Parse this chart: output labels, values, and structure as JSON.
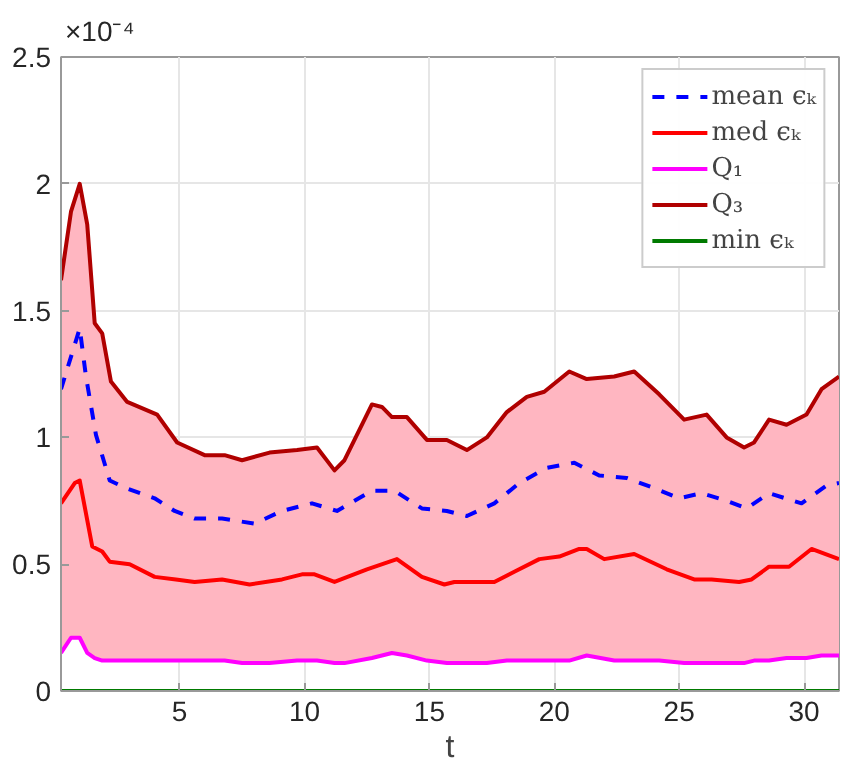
{
  "chart_data": {
    "type": "line",
    "xlabel": "t",
    "annotations": [
      "×10⁻⁴"
    ],
    "xlim": [
      0.25,
      31.4
    ],
    "ylim": [
      0,
      2.5
    ],
    "xticks": [
      5,
      10,
      15,
      20,
      25,
      30
    ],
    "yticks": [
      0,
      0.5,
      1,
      1.5,
      2,
      2.5
    ],
    "grid": true,
    "legend": "top right",
    "series": [
      {
        "name": "mean ϵₖ",
        "color": "#0000ff",
        "line_style": "dashed",
        "x": [
          0.25,
          1.0,
          1.25,
          1.65,
          2.2,
          2.85,
          4.0,
          4.8,
          5.6,
          6.7,
          8.0,
          9.1,
          10.3,
          11.3,
          12.7,
          13.6,
          14.7,
          15.7,
          16.5,
          17.6,
          18.6,
          19.7,
          20.8,
          21.8,
          22.9,
          24.0,
          25.0,
          25.9,
          26.9,
          27.7,
          28.6,
          29.9,
          30.9,
          31.4
        ],
        "values": [
          1.19,
          1.43,
          1.24,
          1.01,
          0.83,
          0.8,
          0.76,
          0.71,
          0.68,
          0.68,
          0.66,
          0.71,
          0.74,
          0.71,
          0.79,
          0.79,
          0.72,
          0.71,
          0.69,
          0.74,
          0.82,
          0.88,
          0.9,
          0.85,
          0.84,
          0.8,
          0.76,
          0.78,
          0.75,
          0.72,
          0.78,
          0.74,
          0.81,
          0.82
        ]
      },
      {
        "name": "med ϵₖ",
        "color": "#ff0000",
        "x": [
          0.25,
          0.8,
          1.0,
          1.5,
          1.9,
          2.2,
          3.0,
          4.0,
          4.85,
          5.6,
          6.7,
          7.8,
          9.1,
          9.9,
          10.4,
          11.2,
          12.5,
          13.7,
          14.7,
          15.6,
          16.0,
          17.6,
          18.4,
          19.4,
          20.2,
          21.0,
          21.3,
          22.0,
          23.2,
          24.5,
          25.6,
          26.3,
          27.4,
          27.9,
          28.6,
          29.4,
          30.3,
          31.4
        ],
        "values": [
          0.74,
          0.82,
          0.83,
          0.57,
          0.55,
          0.51,
          0.5,
          0.45,
          0.44,
          0.43,
          0.44,
          0.42,
          0.44,
          0.46,
          0.46,
          0.43,
          0.48,
          0.52,
          0.45,
          0.42,
          0.43,
          0.43,
          0.47,
          0.52,
          0.53,
          0.56,
          0.56,
          0.52,
          0.54,
          0.48,
          0.44,
          0.44,
          0.43,
          0.44,
          0.49,
          0.49,
          0.56,
          0.52
        ]
      },
      {
        "name": "Q₁",
        "color": "#ff00ff",
        "x": [
          0.25,
          0.65,
          1.0,
          1.3,
          1.6,
          1.9,
          2.25,
          2.9,
          4.1,
          4.9,
          6.0,
          6.8,
          7.5,
          8.6,
          9.7,
          10.5,
          11.2,
          11.6,
          12.7,
          13.1,
          13.5,
          14.1,
          14.9,
          15.7,
          16.5,
          17.3,
          18.1,
          18.9,
          19.6,
          20.6,
          21.3,
          22.4,
          23.2,
          24.2,
          25.2,
          26.1,
          26.9,
          27.6,
          28.0,
          28.6,
          29.3,
          30.1,
          30.7,
          31.4
        ],
        "values": [
          0.15,
          0.21,
          0.21,
          0.15,
          0.13,
          0.12,
          0.12,
          0.12,
          0.12,
          0.12,
          0.12,
          0.12,
          0.11,
          0.11,
          0.12,
          0.12,
          0.11,
          0.11,
          0.13,
          0.14,
          0.15,
          0.14,
          0.12,
          0.11,
          0.11,
          0.11,
          0.12,
          0.12,
          0.12,
          0.12,
          0.14,
          0.12,
          0.12,
          0.12,
          0.11,
          0.11,
          0.11,
          0.11,
          0.12,
          0.12,
          0.13,
          0.13,
          0.14,
          0.14
        ]
      },
      {
        "name": "Q₃",
        "color": "#b00000",
        "x": [
          0.25,
          0.65,
          1.0,
          1.3,
          1.6,
          1.9,
          2.25,
          2.9,
          4.1,
          4.9,
          6.0,
          6.8,
          7.5,
          8.6,
          9.7,
          10.5,
          11.2,
          11.6,
          12.7,
          13.1,
          13.5,
          14.1,
          14.9,
          15.7,
          16.5,
          17.3,
          18.1,
          18.9,
          19.6,
          20.6,
          21.3,
          22.4,
          23.2,
          24.2,
          25.2,
          26.1,
          26.9,
          27.6,
          28.0,
          28.6,
          29.3,
          30.1,
          30.7,
          31.4
        ],
        "values": [
          1.62,
          1.89,
          2.0,
          1.84,
          1.45,
          1.41,
          1.22,
          1.14,
          1.09,
          0.98,
          0.93,
          0.93,
          0.91,
          0.94,
          0.95,
          0.96,
          0.87,
          0.91,
          1.13,
          1.12,
          1.08,
          1.08,
          0.99,
          0.99,
          0.95,
          1.0,
          1.1,
          1.16,
          1.18,
          1.26,
          1.23,
          1.24,
          1.26,
          1.17,
          1.07,
          1.09,
          1.0,
          0.96,
          0.98,
          1.07,
          1.05,
          1.09,
          1.19,
          1.24
        ],
        "lower": [
          0.15,
          0.21,
          0.21,
          0.15,
          0.13,
          0.12,
          0.12,
          0.12,
          0.12,
          0.12,
          0.12,
          0.12,
          0.11,
          0.11,
          0.12,
          0.12,
          0.11,
          0.11,
          0.13,
          0.14,
          0.15,
          0.14,
          0.12,
          0.11,
          0.11,
          0.11,
          0.12,
          0.12,
          0.12,
          0.12,
          0.14,
          0.12,
          0.12,
          0.12,
          0.11,
          0.11,
          0.11,
          0.11,
          0.12,
          0.12,
          0.13,
          0.13,
          0.14,
          0.14
        ],
        "upper": [
          1.62,
          1.89,
          2.0,
          1.84,
          1.45,
          1.41,
          1.22,
          1.14,
          1.09,
          0.98,
          0.93,
          0.93,
          0.91,
          0.94,
          0.95,
          0.96,
          0.87,
          0.91,
          1.13,
          1.12,
          1.08,
          1.08,
          0.99,
          0.99,
          0.95,
          1.0,
          1.1,
          1.16,
          1.18,
          1.26,
          1.23,
          1.24,
          1.26,
          1.17,
          1.07,
          1.09,
          1.0,
          0.96,
          0.98,
          1.07,
          1.05,
          1.09,
          1.19,
          1.24
        ]
      },
      {
        "name": "min ϵₖ",
        "color": "#007a00",
        "x": [
          0.25,
          31.4
        ],
        "values": [
          0,
          0
        ]
      }
    ]
  }
}
